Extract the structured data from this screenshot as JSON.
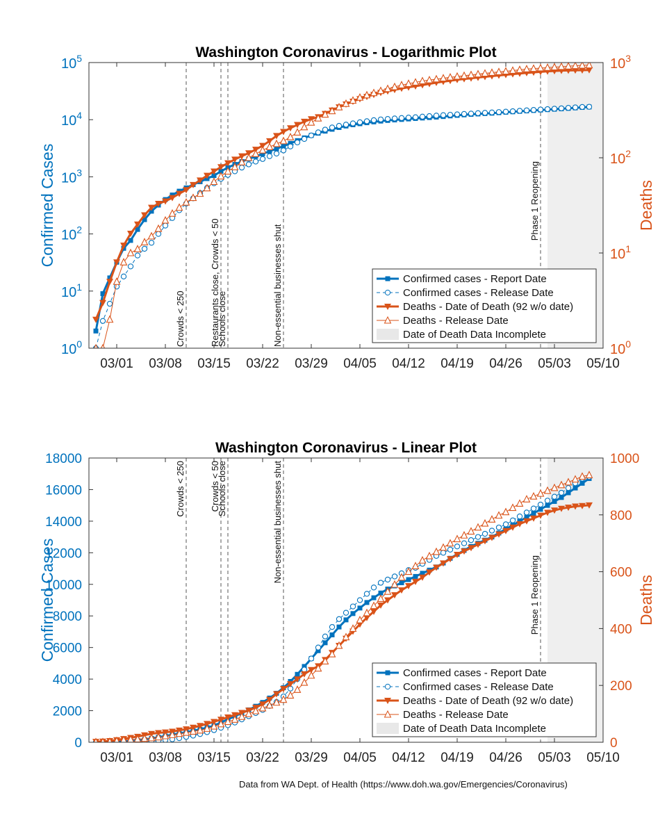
{
  "footnote": "Data from WA Dept. of Health (https://www.doh.wa.gov/Emergencies/Coronavirus)",
  "colors": {
    "cases": "#0072BD",
    "deaths": "#D95319",
    "incomplete_shade": "#efefef",
    "axis": "#333333"
  },
  "chart_data": [
    {
      "type": "line",
      "title": "Washington Coronavirus - Logarithmic Plot",
      "xlabel": "",
      "ylabel_left": "Confirmed Cases",
      "ylabel_right": "Deaths",
      "x_tick_labels": [
        "03/01",
        "03/08",
        "03/15",
        "03/22",
        "03/29",
        "04/05",
        "04/12",
        "04/19",
        "04/26",
        "05/03",
        "05/10"
      ],
      "y_left_scale": "log",
      "y_left_ticks": [
        {
          "value": 1,
          "base": "10",
          "exp": "0"
        },
        {
          "value": 10,
          "base": "10",
          "exp": "1"
        },
        {
          "value": 100,
          "base": "10",
          "exp": "2"
        },
        {
          "value": 1000,
          "base": "10",
          "exp": "3"
        },
        {
          "value": 10000,
          "base": "10",
          "exp": "4"
        },
        {
          "value": 100000,
          "base": "10",
          "exp": "5"
        }
      ],
      "y_right_scale": "log",
      "y_right_ticks": [
        {
          "value": 1,
          "base": "10",
          "exp": "0"
        },
        {
          "value": 10,
          "base": "10",
          "exp": "1"
        },
        {
          "value": 100,
          "base": "10",
          "exp": "2"
        },
        {
          "value": 1000,
          "base": "10",
          "exp": "3"
        }
      ],
      "ylim_left": [
        1,
        100000
      ],
      "ylim_right": [
        1,
        1000
      ],
      "events": [
        {
          "date": "2020-03-11",
          "labels": [
            "Crowds < 250"
          ]
        },
        {
          "date": "2020-03-16",
          "labels": [
            "Restaurants close, Crowds < 50"
          ]
        },
        {
          "date": "2020-03-17",
          "labels": [
            "Schools close"
          ]
        },
        {
          "date": "2020-03-25",
          "labels": [
            "Non-essential businesses shut"
          ]
        },
        {
          "date": "2020-05-01",
          "labels": [
            "Phase 1 Reopening"
          ]
        }
      ],
      "legend": {
        "placement": "bottom-right",
        "entries": [
          "Confirmed cases - Report Date",
          "Confirmed cases - Release Date",
          "Deaths - Date of Death (92 w/o date)",
          "Deaths - Release Date",
          "Date of Death Data Incomplete"
        ]
      }
    },
    {
      "type": "line",
      "title": "Washington Coronavirus - Linear Plot",
      "xlabel": "",
      "ylabel_left": "Confirmed Cases",
      "ylabel_right": "Deaths",
      "x_tick_labels": [
        "03/01",
        "03/08",
        "03/15",
        "03/22",
        "03/29",
        "04/05",
        "04/12",
        "04/19",
        "04/26",
        "05/03",
        "05/10"
      ],
      "y_left_scale": "linear",
      "y_left_ticks": [
        {
          "value": 0,
          "label": "0"
        },
        {
          "value": 2000,
          "label": "2000"
        },
        {
          "value": 4000,
          "label": "4000"
        },
        {
          "value": 6000,
          "label": "6000"
        },
        {
          "value": 8000,
          "label": "8000"
        },
        {
          "value": 10000,
          "label": "10000"
        },
        {
          "value": 12000,
          "label": "12000"
        },
        {
          "value": 14000,
          "label": "14000"
        },
        {
          "value": 16000,
          "label": "16000"
        },
        {
          "value": 18000,
          "label": "18000"
        }
      ],
      "y_right_scale": "linear",
      "y_right_ticks": [
        {
          "value": 0,
          "label": "0"
        },
        {
          "value": 200,
          "label": "200"
        },
        {
          "value": 400,
          "label": "400"
        },
        {
          "value": 600,
          "label": "600"
        },
        {
          "value": 800,
          "label": "800"
        },
        {
          "value": 1000,
          "label": "1000"
        }
      ],
      "ylim_left": [
        0,
        18000
      ],
      "ylim_right": [
        0,
        1000
      ],
      "events": [
        {
          "date": "2020-03-11",
          "labels": [
            "Crowds < 250"
          ]
        },
        {
          "date": "2020-03-16",
          "labels": [
            "Crowds < 50"
          ]
        },
        {
          "date": "2020-03-17",
          "labels": [
            "Schools close"
          ]
        },
        {
          "date": "2020-03-25",
          "labels": [
            "Non-essential businesses shut"
          ]
        },
        {
          "date": "2020-05-01",
          "labels": [
            "Phase 1 Reopening"
          ]
        }
      ],
      "legend": {
        "placement": "bottom-right",
        "entries": [
          "Confirmed cases - Report Date",
          "Confirmed cases - Release Date",
          "Deaths - Date of Death (92 w/o date)",
          "Deaths - Release Date",
          "Date of Death Data Incomplete"
        ]
      }
    }
  ],
  "x_ticks": [
    "2020-03-01",
    "2020-03-08",
    "2020-03-15",
    "2020-03-22",
    "2020-03-29",
    "2020-04-05",
    "2020-04-12",
    "2020-04-19",
    "2020-04-26",
    "2020-05-03",
    "2020-05-10"
  ],
  "xlim": [
    "2020-02-26",
    "2020-05-10"
  ],
  "incomplete_range": [
    "2020-05-02",
    "2020-05-10"
  ],
  "dates": [
    "2020-02-27",
    "2020-02-28",
    "2020-02-29",
    "2020-03-01",
    "2020-03-02",
    "2020-03-03",
    "2020-03-04",
    "2020-03-05",
    "2020-03-06",
    "2020-03-07",
    "2020-03-08",
    "2020-03-09",
    "2020-03-10",
    "2020-03-11",
    "2020-03-12",
    "2020-03-13",
    "2020-03-14",
    "2020-03-15",
    "2020-03-16",
    "2020-03-17",
    "2020-03-18",
    "2020-03-19",
    "2020-03-20",
    "2020-03-21",
    "2020-03-22",
    "2020-03-23",
    "2020-03-24",
    "2020-03-25",
    "2020-03-26",
    "2020-03-27",
    "2020-03-28",
    "2020-03-29",
    "2020-03-30",
    "2020-03-31",
    "2020-04-01",
    "2020-04-02",
    "2020-04-03",
    "2020-04-04",
    "2020-04-05",
    "2020-04-06",
    "2020-04-07",
    "2020-04-08",
    "2020-04-09",
    "2020-04-10",
    "2020-04-11",
    "2020-04-12",
    "2020-04-13",
    "2020-04-14",
    "2020-04-15",
    "2020-04-16",
    "2020-04-17",
    "2020-04-18",
    "2020-04-19",
    "2020-04-20",
    "2020-04-21",
    "2020-04-22",
    "2020-04-23",
    "2020-04-24",
    "2020-04-25",
    "2020-04-26",
    "2020-04-27",
    "2020-04-28",
    "2020-04-29",
    "2020-04-30",
    "2020-05-01",
    "2020-05-02",
    "2020-05-03",
    "2020-05-04",
    "2020-05-05",
    "2020-05-06",
    "2020-05-07",
    "2020-05-08"
  ],
  "series": [
    {
      "name": "Confirmed cases - Report Date",
      "axis": "left",
      "style": "solid-square",
      "values": [
        2,
        9,
        17,
        32,
        56,
        77,
        120,
        178,
        250,
        320,
        400,
        480,
        560,
        640,
        730,
        820,
        930,
        1050,
        1250,
        1450,
        1650,
        1850,
        2050,
        2280,
        2520,
        2800,
        3100,
        3450,
        3850,
        4300,
        4800,
        5300,
        5800,
        6300,
        6800,
        7300,
        7750,
        8150,
        8500,
        8850,
        9150,
        9450,
        9700,
        9900,
        10100,
        10300,
        10500,
        10700,
        10900,
        11100,
        11350,
        11650,
        11900,
        12150,
        12400,
        12600,
        12800,
        13000,
        13250,
        13500,
        13750,
        14000,
        14250,
        14500,
        14750,
        15000,
        15250,
        15500,
        15800,
        16100,
        16400,
        16700
      ]
    },
    {
      "name": "Confirmed cases - Release Date",
      "axis": "left",
      "style": "dashed-circle",
      "values": [
        1,
        3,
        6,
        12,
        18,
        27,
        42,
        55,
        70,
        100,
        140,
        190,
        260,
        340,
        420,
        520,
        640,
        770,
        920,
        1080,
        1250,
        1450,
        1650,
        1850,
        2050,
        2300,
        2550,
        2900,
        3400,
        4000,
        4600,
        5300,
        6000,
        6700,
        7300,
        7800,
        8200,
        8600,
        9000,
        9400,
        9800,
        10100,
        10300,
        10500,
        10700,
        10900,
        11050,
        11300,
        11550,
        11800,
        12000,
        12200,
        12400,
        12600,
        12800,
        13000,
        13200,
        13400,
        13600,
        13800,
        14050,
        14300,
        14550,
        14800,
        15050,
        15300,
        15550,
        15800,
        16100,
        16400,
        16700,
        16800
      ]
    },
    {
      "name": "Deaths - Date of Death (92 w/o date)",
      "axis": "right",
      "style": "solid-triangle-down",
      "values": [
        2,
        3,
        5,
        8,
        12,
        16,
        20,
        25,
        30,
        33,
        35,
        38,
        42,
        46,
        52,
        58,
        65,
        72,
        80,
        88,
        96,
        104,
        112,
        122,
        134,
        150,
        170,
        188,
        205,
        222,
        240,
        255,
        268,
        290,
        315,
        340,
        365,
        390,
        415,
        438,
        460,
        482,
        500,
        518,
        535,
        550,
        565,
        580,
        598,
        615,
        630,
        645,
        660,
        672,
        684,
        696,
        708,
        720,
        732,
        744,
        756,
        768,
        778,
        788,
        798,
        808,
        816,
        822,
        826,
        830,
        832,
        834
      ]
    },
    {
      "name": "Deaths - Release Date",
      "axis": "right",
      "style": "thin-triangle-up",
      "values": [
        1,
        1,
        2,
        5,
        8,
        10,
        11,
        13,
        15,
        18,
        22,
        26,
        30,
        34,
        38,
        42,
        48,
        56,
        64,
        72,
        80,
        90,
        100,
        110,
        120,
        130,
        140,
        150,
        165,
        185,
        210,
        235,
        260,
        285,
        310,
        340,
        370,
        400,
        430,
        455,
        480,
        505,
        530,
        555,
        580,
        600,
        620,
        640,
        655,
        670,
        685,
        700,
        715,
        728,
        742,
        756,
        770,
        784,
        798,
        810,
        825,
        840,
        855,
        865,
        875,
        885,
        895,
        905,
        915,
        925,
        935,
        940
      ]
    }
  ]
}
